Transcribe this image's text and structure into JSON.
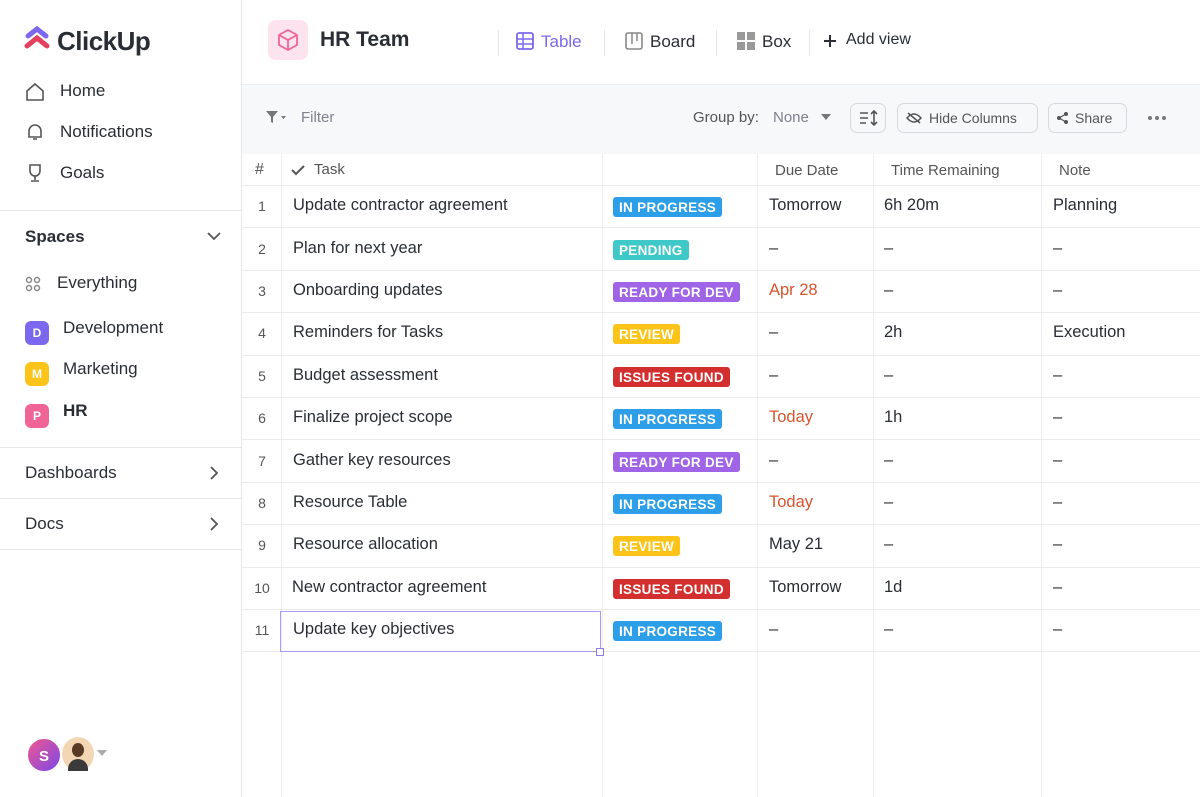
{
  "sidebar": {
    "logo": "ClickUp",
    "nav": [
      "Home",
      "Notifications",
      "Goals"
    ],
    "spaces_title": "Spaces",
    "spaces": [
      {
        "name": "Everything"
      },
      {
        "badge": "D",
        "color": "#7b68ee",
        "name": "Development"
      },
      {
        "badge": "M",
        "color": "#fcc419",
        "name": "Marketing"
      },
      {
        "badge": "P",
        "color": "#f06595",
        "name": "HR"
      }
    ],
    "sections": [
      "Dashboards",
      "Docs"
    ],
    "avatar": "S"
  },
  "header": {
    "title": "HR Team",
    "views": [
      "Table",
      "Board",
      "Box"
    ],
    "add_view": "Add view"
  },
  "toolbar": {
    "filter": "Filter",
    "group_by_label": "Group by:",
    "group_by_value": "None",
    "hide_columns": "Hide Columns",
    "share": "Share"
  },
  "table": {
    "columns": [
      "#",
      "Task",
      "Due Date",
      "Time Remaining",
      "Note"
    ],
    "rows": [
      {
        "n": 1,
        "task": "Update contractor agreement",
        "status": "IN PROGRESS",
        "status_color": "#2d9fe8",
        "due": "Tomorrow",
        "time": "6h 20m",
        "note": "Planning"
      },
      {
        "n": 2,
        "task": "Plan for next year",
        "status": "PENDING",
        "status_color": "#3ec8c8",
        "due": "–",
        "time": "–",
        "note": "–"
      },
      {
        "n": 3,
        "task": "Onboarding updates",
        "status": "READY FOR DEV",
        "status_color": "#a064e6",
        "due": "Apr 28",
        "due_color": "#d9542c",
        "time": "–",
        "note": "–"
      },
      {
        "n": 4,
        "task": "Reminders for Tasks",
        "status": "REVIEW",
        "status_color": "#fcc419",
        "due": "–",
        "time": "2h",
        "note": "Execution"
      },
      {
        "n": 5,
        "task": "Budget assessment",
        "status": "ISSUES FOUND",
        "status_color": "#d32f2f",
        "due": "–",
        "time": "–",
        "note": "–"
      },
      {
        "n": 6,
        "task": "Finalize project scope",
        "status": "IN PROGRESS",
        "status_color": "#2d9fe8",
        "due": "Today",
        "due_color": "#d9542c",
        "time": "1h",
        "note": "–"
      },
      {
        "n": 7,
        "task": "Gather key resources",
        "status": "READY FOR DEV",
        "status_color": "#a064e6",
        "due": "–",
        "time": "–",
        "note": "–"
      },
      {
        "n": 8,
        "task": "Resource Table",
        "status": "IN PROGRESS",
        "status_color": "#2d9fe8",
        "due": "Today",
        "due_color": "#d9542c",
        "time": "–",
        "note": "–"
      },
      {
        "n": 9,
        "task": "Resource allocation",
        "status": "REVIEW",
        "status_color": "#fcc419",
        "due": "May 21",
        "time": "–",
        "note": "–"
      },
      {
        "n": 10,
        "task": "New contractor agreement",
        "status": "ISSUES FOUND",
        "status_color": "#d32f2f",
        "due": "Tomorrow",
        "time": "1d",
        "note": "–"
      },
      {
        "n": 11,
        "task": "Update key objectives",
        "status": "IN PROGRESS",
        "status_color": "#2d9fe8",
        "due": "–",
        "time": "–",
        "note": "–"
      }
    ]
  }
}
